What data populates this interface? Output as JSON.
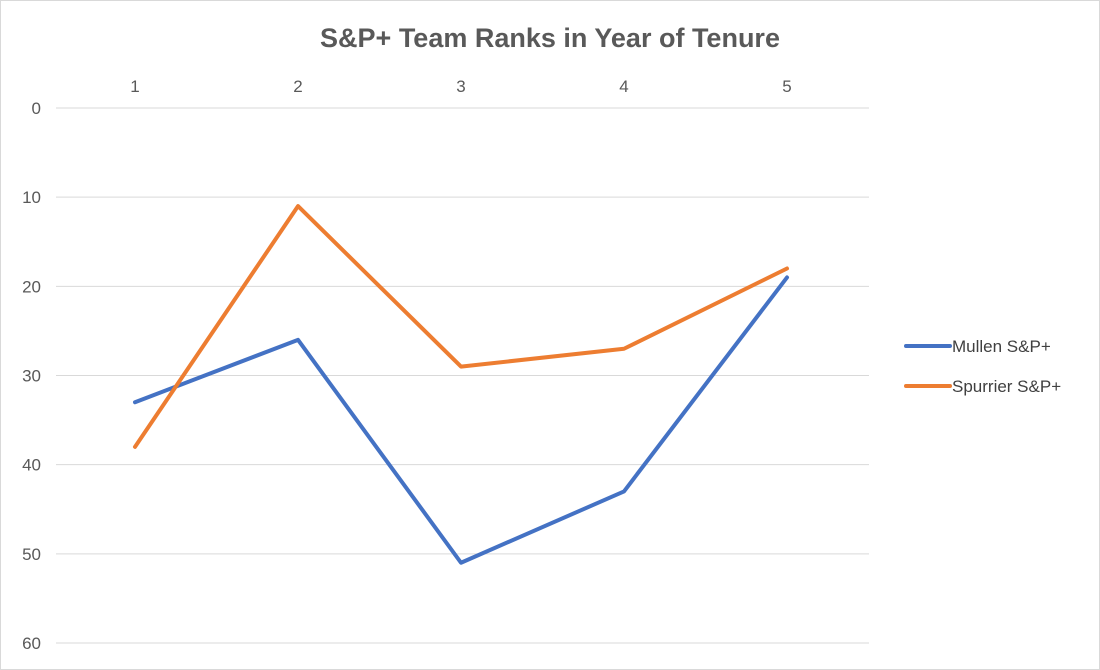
{
  "chart_data": {
    "type": "line",
    "title": "S&P+ Team Ranks in Year of Tenure",
    "xlabel": "",
    "ylabel": "",
    "x": [
      "1",
      "2",
      "3",
      "4",
      "5"
    ],
    "x_axis_position": "top",
    "y_axis_inverted": true,
    "ylim": [
      0,
      60
    ],
    "yticks": [
      "0",
      "10",
      "20",
      "30",
      "40",
      "50",
      "60"
    ],
    "grid": true,
    "legend_position": "right",
    "series": [
      {
        "name": "Mullen S&P+",
        "color": "#4472C4",
        "values": [
          33,
          26,
          51,
          43,
          19
        ]
      },
      {
        "name": "Spurrier S&P+",
        "color": "#ED7D31",
        "values": [
          38,
          11,
          29,
          27,
          18
        ]
      }
    ]
  }
}
